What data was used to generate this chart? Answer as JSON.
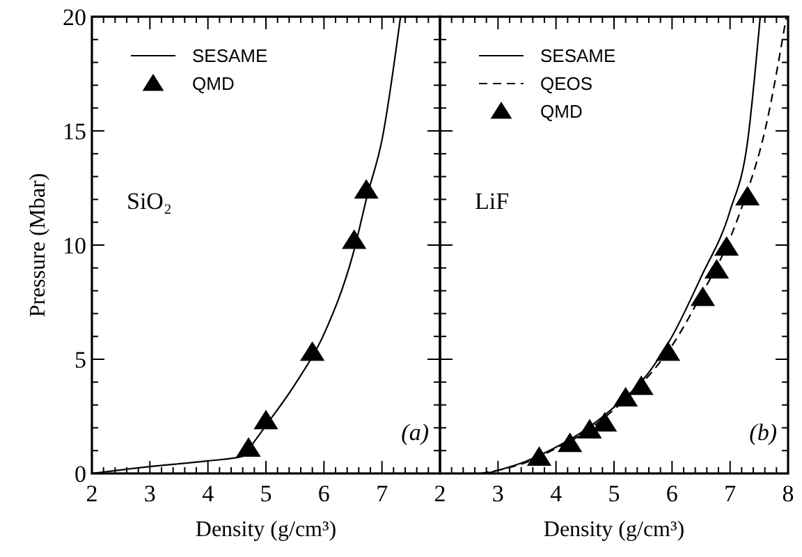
{
  "chart_data": [
    {
      "type": "line",
      "ylabel": "Pressure (Mbar)",
      "xlabel": "Density (g/cm³)",
      "xlim": [
        2,
        8
      ],
      "ylim": [
        0,
        20
      ],
      "xticks": [
        2,
        {
          "value": 2.2,
          "label": null
        },
        {
          "value": 2.4,
          "label": null
        },
        {
          "value": 2.6,
          "label": null
        },
        {
          "value": 2.8,
          "label": null
        },
        3,
        {
          "value": 3.2,
          "label": null
        },
        {
          "value": 3.4,
          "label": null
        },
        {
          "value": 3.6,
          "label": null
        },
        {
          "value": 3.8,
          "label": null
        },
        4,
        {
          "value": 4.2,
          "label": null
        },
        {
          "value": 4.4,
          "label": null
        },
        {
          "value": 4.6,
          "label": null
        },
        {
          "value": 4.8,
          "label": null
        },
        5,
        {
          "value": 5.2,
          "label": null
        },
        {
          "value": 5.4,
          "label": null
        },
        {
          "value": 5.6,
          "label": null
        },
        {
          "value": 5.8,
          "label": null
        },
        6,
        {
          "value": 6.2,
          "label": null
        },
        {
          "value": 6.4,
          "label": null
        },
        {
          "value": 6.6,
          "label": null
        },
        {
          "value": 6.8,
          "label": null
        },
        7,
        {
          "value": 7.2,
          "label": null
        },
        {
          "value": 7.4,
          "label": null
        },
        {
          "value": 7.6,
          "label": null
        },
        {
          "value": 7.8,
          "label": null
        },
        {
          "value": 8,
          "label": null
        }
      ],
      "yticks": [
        0,
        {
          "value": 1,
          "label": null
        },
        {
          "value": 2,
          "label": null
        },
        {
          "value": 3,
          "label": null
        },
        {
          "value": 4,
          "label": null
        },
        5,
        {
          "value": 6,
          "label": null
        },
        {
          "value": 7,
          "label": null
        },
        {
          "value": 8,
          "label": null
        },
        {
          "value": 9,
          "label": null
        },
        10,
        {
          "value": 11,
          "label": null
        },
        {
          "value": 12,
          "label": null
        },
        {
          "value": 13,
          "label": null
        },
        {
          "value": 14,
          "label": null
        },
        15,
        {
          "value": 16,
          "label": null
        },
        {
          "value": 17,
          "label": null
        },
        {
          "value": 18,
          "label": null
        },
        {
          "value": 19,
          "label": null
        },
        20
      ],
      "legend": "top left",
      "grid": false,
      "annotations": [
        "SiO₂",
        "(a)"
      ],
      "series": [
        {
          "name": "SESAME",
          "line_style": "solid",
          "color": "#000000",
          "x": [
            2,
            3,
            4,
            4.6,
            4.8,
            5,
            5.5,
            6,
            6.5,
            6.75,
            7,
            7.32
          ],
          "values": [
            0,
            0.3,
            0.55,
            0.75,
            1.4,
            2.1,
            3.9,
            6.1,
            9.6,
            12.2,
            14.6,
            20
          ]
        },
        {
          "name": "QMD",
          "type": "scatter",
          "marker": "triangle",
          "color": "#000000",
          "x": [
            4.7,
            5.0,
            5.8,
            6.52,
            6.73
          ],
          "values": [
            1.1,
            2.3,
            5.3,
            10.2,
            12.4
          ]
        }
      ]
    },
    {
      "type": "line",
      "xlabel": "Density (g/cm³)",
      "xlim": [
        2,
        8
      ],
      "ylim": [
        0,
        20
      ],
      "tick_labels": "x",
      "xticks": [
        2,
        {
          "value": 2.2,
          "label": null
        },
        {
          "value": 2.4,
          "label": null
        },
        {
          "value": 2.6,
          "label": null
        },
        {
          "value": 2.8,
          "label": null
        },
        3,
        {
          "value": 3.2,
          "label": null
        },
        {
          "value": 3.4,
          "label": null
        },
        {
          "value": 3.6,
          "label": null
        },
        {
          "value": 3.8,
          "label": null
        },
        4,
        {
          "value": 4.2,
          "label": null
        },
        {
          "value": 4.4,
          "label": null
        },
        {
          "value": 4.6,
          "label": null
        },
        {
          "value": 4.8,
          "label": null
        },
        5,
        {
          "value": 5.2,
          "label": null
        },
        {
          "value": 5.4,
          "label": null
        },
        {
          "value": 5.6,
          "label": null
        },
        {
          "value": 5.8,
          "label": null
        },
        6,
        {
          "value": 6.2,
          "label": null
        },
        {
          "value": 6.4,
          "label": null
        },
        {
          "value": 6.6,
          "label": null
        },
        {
          "value": 6.8,
          "label": null
        },
        7,
        {
          "value": 7.2,
          "label": null
        },
        {
          "value": 7.4,
          "label": null
        },
        {
          "value": 7.6,
          "label": null
        },
        {
          "value": 7.8,
          "label": null
        },
        8
      ],
      "yticks": [
        0,
        {
          "value": 1,
          "label": null
        },
        {
          "value": 2,
          "label": null
        },
        {
          "value": 3,
          "label": null
        },
        {
          "value": 4,
          "label": null
        },
        5,
        {
          "value": 6,
          "label": null
        },
        {
          "value": 7,
          "label": null
        },
        {
          "value": 8,
          "label": null
        },
        {
          "value": 9,
          "label": null
        },
        10,
        {
          "value": 11,
          "label": null
        },
        {
          "value": 12,
          "label": null
        },
        {
          "value": 13,
          "label": null
        },
        {
          "value": 14,
          "label": null
        },
        15,
        {
          "value": 16,
          "label": null
        },
        {
          "value": 17,
          "label": null
        },
        {
          "value": 18,
          "label": null
        },
        {
          "value": 19,
          "label": null
        },
        20
      ],
      "legend": "top left",
      "grid": false,
      "annotations": [
        "LiF",
        "(b)"
      ],
      "series": [
        {
          "name": "SESAME",
          "line_style": "solid",
          "color": "#000000",
          "x": [
            2.8,
            3.5,
            4,
            4.5,
            5,
            5.5,
            6,
            6.5,
            7,
            7.3,
            7.52
          ],
          "values": [
            0,
            0.55,
            1.15,
            1.9,
            2.9,
            4.1,
            6.0,
            8.6,
            11.5,
            14.5,
            20
          ]
        },
        {
          "name": "QEOS",
          "line_style": "dashed",
          "color": "#000000",
          "x": [
            2.7,
            3.5,
            4,
            4.5,
            5,
            5.5,
            6,
            6.5,
            7,
            7.25,
            7.6,
            7.97
          ],
          "values": [
            0,
            0.5,
            1.1,
            1.8,
            2.8,
            4.0,
            5.6,
            7.8,
            10.3,
            12,
            15,
            20
          ]
        },
        {
          "name": "QMD",
          "type": "scatter",
          "marker": "triangle",
          "color": "#000000",
          "x": [
            3.71,
            4.24,
            4.58,
            4.84,
            5.2,
            5.47,
            5.93,
            6.53,
            6.77,
            6.94,
            7.3
          ],
          "values": [
            0.7,
            1.3,
            1.9,
            2.2,
            3.3,
            3.8,
            5.3,
            7.7,
            8.9,
            9.9,
            12.1
          ]
        }
      ]
    }
  ]
}
